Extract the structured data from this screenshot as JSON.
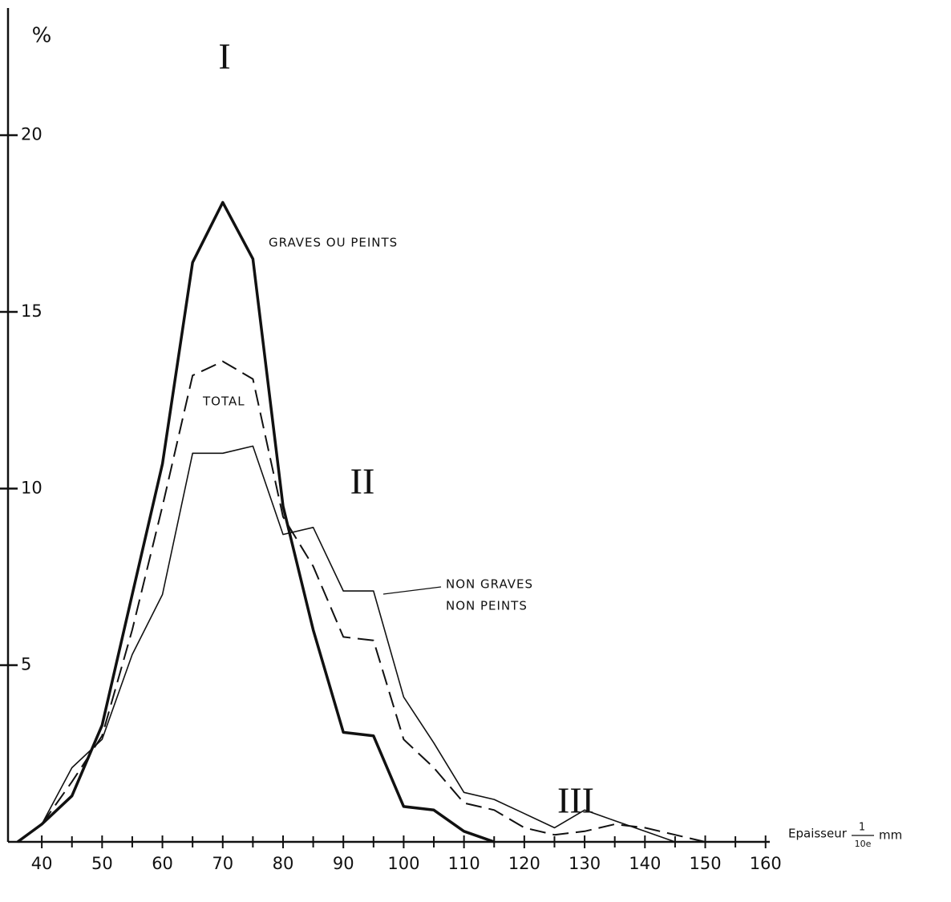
{
  "chart_data": {
    "type": "line",
    "y_label": "%",
    "x_label": {
      "text": "Epaisseur",
      "numerator": "1",
      "denominator": "10e",
      "unit": "mm"
    },
    "x": [
      36,
      40,
      45,
      50,
      55,
      60,
      65,
      70,
      75,
      80,
      85,
      90,
      95,
      100,
      105,
      110,
      115,
      120,
      125,
      130,
      135,
      140,
      145,
      150
    ],
    "series": [
      {
        "name": "GRAVES OU PEINTS",
        "color": "#111111",
        "style": "thick",
        "values": [
          0,
          0.5,
          1.3,
          3.3,
          7,
          10.7,
          16.4,
          18.1,
          16.5,
          9.5,
          6,
          3.1,
          3,
          1,
          0.9,
          0.3,
          0,
          null,
          null,
          null,
          null,
          null,
          null,
          null
        ]
      },
      {
        "name": "TOTAL",
        "color": "#111111",
        "style": "dashed",
        "values": [
          null,
          0.5,
          1.7,
          3,
          6,
          9.5,
          13.2,
          13.6,
          13.1,
          9.2,
          7.8,
          5.8,
          5.7,
          2.9,
          2.1,
          1.1,
          0.9,
          0.4,
          0.2,
          0.3,
          0.5,
          0.4,
          0.2,
          0
        ]
      },
      {
        "name": [
          "NON GRAVES",
          "NON PEINTS"
        ],
        "color": "#111111",
        "style": "thin",
        "values": [
          null,
          0.5,
          2.1,
          2.9,
          5.3,
          7,
          11,
          11,
          11.2,
          8.7,
          8.9,
          7.1,
          7.1,
          4.1,
          2.8,
          1.4,
          1.2,
          0.8,
          0.4,
          0.9,
          0.6,
          0.3,
          0,
          null
        ]
      }
    ],
    "zones": [
      "I",
      "II",
      "III"
    ],
    "xlim": [
      34.4,
      160.7
    ],
    "ylim": [
      0,
      23.6
    ],
    "xticks": [
      40,
      50,
      60,
      70,
      80,
      90,
      100,
      110,
      120,
      130,
      140,
      150,
      160
    ],
    "xminorticks": [
      45,
      55,
      65,
      75,
      85,
      95,
      105,
      115,
      125,
      135,
      145,
      155
    ],
    "yticks": [
      5,
      10,
      15,
      20
    ],
    "grid": false
  }
}
